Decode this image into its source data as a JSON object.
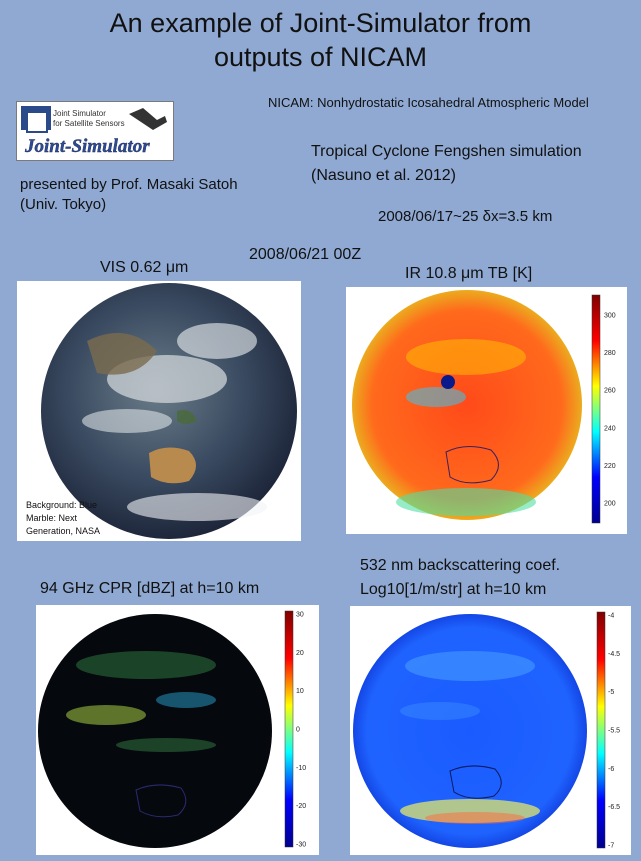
{
  "title_line1": "An example of Joint-Simulator from",
  "title_line2": "outputs of NICAM",
  "nicam_definition": "NICAM:  Nonhydrostatic Icosahedral Atmospheric Model",
  "logo": {
    "line1": "Joint Simulator",
    "line2": "for Satellite Sensors",
    "wordmark": "Joint-Simulator"
  },
  "presenter_line1": "presented by Prof. Masaki Satoh",
  "presenter_line2": "(Univ. Tokyo)",
  "simulation_line1": "Tropical Cyclone Fengshen simulation",
  "simulation_line2": "(Nasuno et al. 2012)",
  "period": "2008/06/17~25  δx=3.5 km",
  "datestamp": "2008/06/21 00Z",
  "panels": {
    "vis": {
      "label": "VIS 0.62 μm",
      "credit_line1": "Background: Blue",
      "credit_line2": "Marble: Next",
      "credit_line3": "Generation, NASA"
    },
    "ir": {
      "label": "IR 10.8 μm TB [K]",
      "colorbar_ticks": [
        "300",
        "280",
        "260",
        "240",
        "220",
        "200"
      ]
    },
    "cpr": {
      "label": "94 GHz CPR [dBZ] at h=10 km",
      "colorbar_ticks": [
        "30",
        "20",
        "10",
        "0",
        "-10",
        "-20",
        "-30"
      ]
    },
    "lidar": {
      "label_line1": "532 nm backscattering coef.",
      "label_line2": "Log10[1/m/str] at h=10 km",
      "colorbar_ticks": [
        "-4",
        "-4.5",
        "-5",
        "-5.5",
        "-6",
        "-6.5",
        "-7"
      ]
    }
  },
  "colors": {
    "background": "#8fa9d3",
    "jet_colormap": [
      "#00008f",
      "#0000ff",
      "#00ffff",
      "#ffff00",
      "#ff0000",
      "#800000"
    ]
  }
}
